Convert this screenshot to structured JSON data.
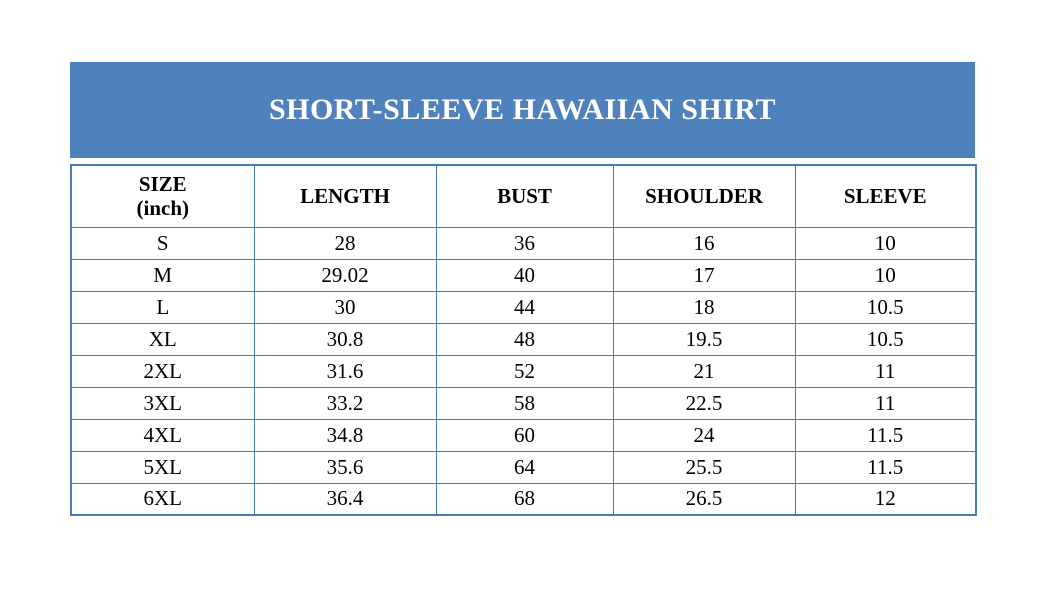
{
  "title": "SHORT-SLEEVE HAWAIIAN SHIRT",
  "colors": {
    "banner_bg": "#4f81bd",
    "banner_text": "#ffffff",
    "table_border": "#4a7ebb",
    "cell_text": "#000000",
    "page_bg": "#ffffff"
  },
  "table": {
    "header": {
      "size_line1": "SIZE",
      "size_line2": "(inch)",
      "length": "LENGTH",
      "bust": "BUST",
      "shoulder": "SHOULDER",
      "sleeve": "SLEEVE"
    },
    "rows": [
      {
        "size": "S",
        "length": "28",
        "bust": "36",
        "shoulder": "16",
        "sleeve": "10"
      },
      {
        "size": "M",
        "length": "29.02",
        "bust": "40",
        "shoulder": "17",
        "sleeve": "10"
      },
      {
        "size": "L",
        "length": "30",
        "bust": "44",
        "shoulder": "18",
        "sleeve": "10.5"
      },
      {
        "size": "XL",
        "length": "30.8",
        "bust": "48",
        "shoulder": "19.5",
        "sleeve": "10.5"
      },
      {
        "size": "2XL",
        "length": "31.6",
        "bust": "52",
        "shoulder": "21",
        "sleeve": "11"
      },
      {
        "size": "3XL",
        "length": "33.2",
        "bust": "58",
        "shoulder": "22.5",
        "sleeve": "11"
      },
      {
        "size": "4XL",
        "length": "34.8",
        "bust": "60",
        "shoulder": "24",
        "sleeve": "11.5"
      },
      {
        "size": "5XL",
        "length": "35.6",
        "bust": "64",
        "shoulder": "25.5",
        "sleeve": "11.5"
      },
      {
        "size": "6XL",
        "length": "36.4",
        "bust": "68",
        "shoulder": "26.5",
        "sleeve": "12"
      }
    ]
  }
}
